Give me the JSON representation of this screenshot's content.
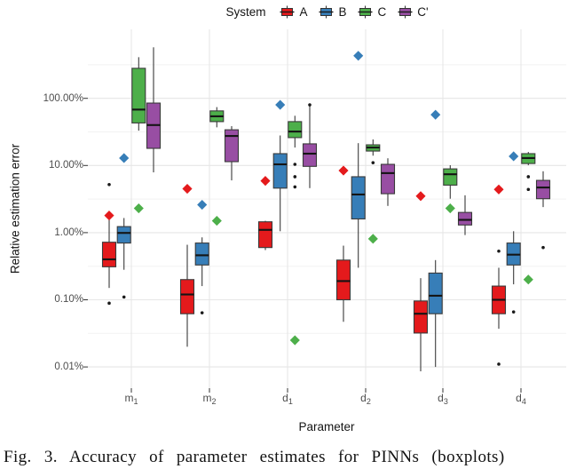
{
  "legend": {
    "title": "System",
    "entries": [
      {
        "label": "A",
        "color": "#E41A1C"
      },
      {
        "label": "B",
        "color": "#377EB8"
      },
      {
        "label": "C",
        "color": "#4DAF4A"
      },
      {
        "label": "C'",
        "color": "#984EA3"
      }
    ]
  },
  "y_axis": {
    "title": "Relative estimation error",
    "tick_labels": [
      "100.00%",
      "10.00%",
      "1.00%",
      "0.10%",
      "0.01%"
    ],
    "tick_values_pct": [
      100,
      10,
      1,
      0.1,
      0.01
    ]
  },
  "x_axis": {
    "title": "Parameter",
    "ticks": [
      {
        "base": "m",
        "sub": "1"
      },
      {
        "base": "m",
        "sub": "2"
      },
      {
        "base": "d",
        "sub": "1"
      },
      {
        "base": "d",
        "sub": "2"
      },
      {
        "base": "d",
        "sub": "3"
      },
      {
        "base": "d",
        "sub": "4"
      }
    ]
  },
  "caption": {
    "text": "Fig. 3. Accuracy of parameter estimates for PINNs (boxplots)"
  },
  "chart_data": {
    "type": "boxplot",
    "y_scale": "log",
    "unit": "percent relative estimation error",
    "ylim_pct": [
      0.008,
      700
    ],
    "grid": "major+minor",
    "legend_position": "top",
    "categories": [
      "m1",
      "m2",
      "d1",
      "d2",
      "d3",
      "d4"
    ],
    "series": [
      {
        "name": "A",
        "color": "#E41A1C",
        "boxes": [
          {
            "lo": 0.15,
            "q1": 0.31,
            "med": 0.4,
            "q3": 0.72,
            "hi": 1.6,
            "mean": 1.8,
            "outliers": [
              5.2,
              0.089
            ]
          },
          {
            "lo": 0.02,
            "q1": 0.062,
            "med": 0.12,
            "q3": 0.2,
            "hi": 0.66,
            "mean": 4.5,
            "outliers": []
          },
          {
            "lo": 0.55,
            "q1": 0.6,
            "med": 1.1,
            "q3": 1.45,
            "hi": 1.5,
            "mean": 5.9,
            "outliers": []
          },
          {
            "lo": 0.047,
            "q1": 0.1,
            "med": 0.19,
            "q3": 0.39,
            "hi": 0.64,
            "mean": 8.4,
            "outliers": []
          },
          {
            "lo": 0.0086,
            "q1": 0.032,
            "med": 0.062,
            "q3": 0.096,
            "hi": 0.21,
            "mean": 3.5,
            "outliers": []
          },
          {
            "lo": 0.037,
            "q1": 0.062,
            "med": 0.1,
            "q3": 0.16,
            "hi": 0.3,
            "mean": 4.4,
            "outliers": [
              0.53,
              0.011
            ]
          }
        ]
      },
      {
        "name": "B",
        "color": "#377EB8",
        "boxes": [
          {
            "lo": 0.28,
            "q1": 0.7,
            "med": 0.99,
            "q3": 1.23,
            "hi": 1.65,
            "mean": 12.9,
            "outliers": [
              0.11
            ]
          },
          {
            "lo": 0.16,
            "q1": 0.33,
            "med": 0.46,
            "q3": 0.7,
            "hi": 0.85,
            "mean": 2.6,
            "outliers": [
              0.064
            ]
          },
          {
            "lo": 1.05,
            "q1": 4.6,
            "med": 10.4,
            "q3": 15.0,
            "hi": 28.0,
            "mean": 80.0,
            "outliers": []
          },
          {
            "lo": 0.3,
            "q1": 1.6,
            "med": 3.7,
            "q3": 6.8,
            "hi": 21.5,
            "mean": 430.0,
            "outliers": []
          },
          {
            "lo": 0.01,
            "q1": 0.062,
            "med": 0.115,
            "q3": 0.25,
            "hi": 0.39,
            "mean": 57.0,
            "outliers": []
          },
          {
            "lo": 0.17,
            "q1": 0.33,
            "med": 0.47,
            "q3": 0.7,
            "hi": 1.05,
            "mean": 13.7,
            "outliers": [
              0.066
            ]
          }
        ]
      },
      {
        "name": "C",
        "color": "#4DAF4A",
        "boxes": [
          {
            "lo": 33.0,
            "q1": 43.0,
            "med": 68.0,
            "q3": 280.0,
            "hi": 410.0,
            "mean": 2.3,
            "outliers": []
          },
          {
            "lo": 37.0,
            "q1": 45.0,
            "med": 54.0,
            "q3": 65.0,
            "hi": 74.0,
            "mean": 1.5,
            "outliers": []
          },
          {
            "lo": 18.5,
            "q1": 26.0,
            "med": 32.0,
            "q3": 45.0,
            "hi": 55.0,
            "mean": 0.025,
            "outliers": [
              10.4,
              6.8,
              4.8
            ]
          },
          {
            "lo": 14.0,
            "q1": 16.4,
            "med": 18.5,
            "q3": 20.3,
            "hi": 24.4,
            "mean": 0.81,
            "outliers": [
              11.0
            ]
          },
          {
            "lo": 3.2,
            "q1": 5.1,
            "med": 7.4,
            "q3": 8.9,
            "hi": 10.1,
            "mean": 2.3,
            "outliers": []
          },
          {
            "lo": 10.1,
            "q1": 10.7,
            "med": 12.9,
            "q3": 15.0,
            "hi": 15.9,
            "mean": 0.2,
            "outliers": [
              6.8,
              4.4
            ]
          }
        ]
      },
      {
        "name": "C'",
        "color": "#984EA3",
        "boxes": [
          {
            "lo": 7.9,
            "q1": 18.0,
            "med": 40.0,
            "q3": 85.0,
            "hi": 575.0,
            "mean": null,
            "outliers": []
          },
          {
            "lo": 6.0,
            "q1": 11.4,
            "med": 27.5,
            "q3": 34.0,
            "hi": 38.5,
            "mean": null,
            "outliers": []
          },
          {
            "lo": 4.6,
            "q1": 9.7,
            "med": 15.0,
            "q3": 21.0,
            "hi": 82.0,
            "mean": null,
            "outliers": [
              80.0
            ]
          },
          {
            "lo": 2.5,
            "q1": 3.8,
            "med": 7.7,
            "q3": 10.4,
            "hi": 12.8,
            "mean": null,
            "outliers": []
          },
          {
            "lo": 0.92,
            "q1": 1.3,
            "med": 1.55,
            "q3": 2.0,
            "hi": 3.6,
            "mean": null,
            "outliers": []
          },
          {
            "lo": 2.4,
            "q1": 3.2,
            "med": 4.7,
            "q3": 6.0,
            "hi": 8.2,
            "mean": null,
            "outliers": [
              0.6
            ]
          }
        ]
      }
    ]
  }
}
